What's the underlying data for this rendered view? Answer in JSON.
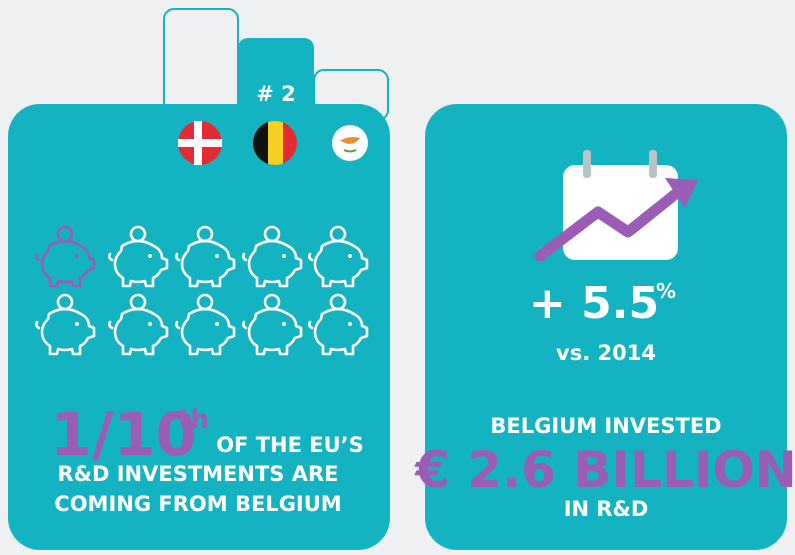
{
  "left_card": {
    "rank": "# 2",
    "fraction": "1/10",
    "fraction_suffix": "th",
    "lines": [
      "OF THE EU’S",
      "R&D INVESTMENTS ARE",
      "COMING FROM BELGIUM"
    ]
  },
  "right_card": {
    "growth": "+ 5.5",
    "growth_unit": "%",
    "comparison": "vs. 2014",
    "lines": [
      "BELGIUM INVESTED",
      "€ 2.6 BILLION",
      "IN R&D"
    ]
  }
}
